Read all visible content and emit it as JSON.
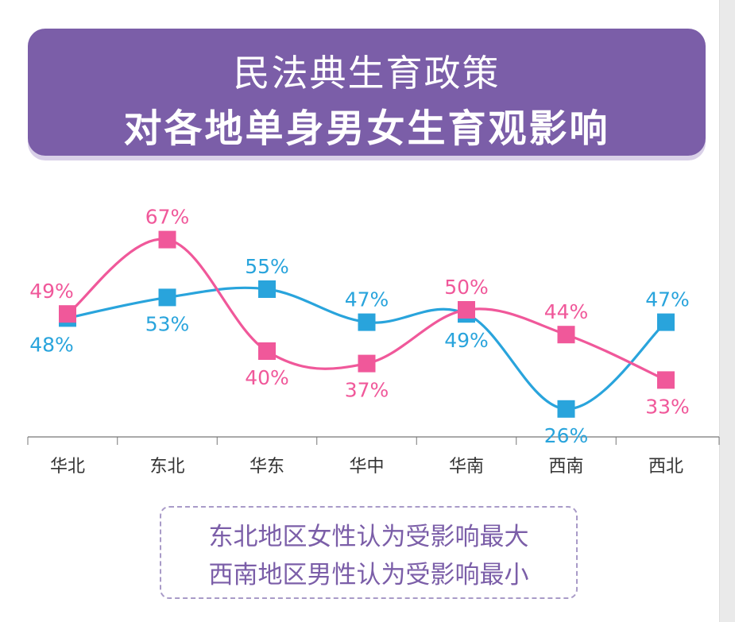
{
  "colors": {
    "banner": "#7b5ea8",
    "female_series": "#f0589a",
    "male_series": "#29a4dc",
    "note_text": "#7b5ea8",
    "axis": "#777777"
  },
  "title": {
    "line1": "民法典生育政策",
    "line2": "对各地单身男女生育观影响"
  },
  "notes": {
    "line1": "东北地区女性认为受影响最大",
    "line2": "西南地区男性认为受影响最小"
  },
  "chart_data": {
    "type": "line",
    "title": "对各地单身男女生育观影响",
    "categories": [
      "华北",
      "东北",
      "华东",
      "华中",
      "华南",
      "西南",
      "西北"
    ],
    "value_format": "percent",
    "ylim": [
      0,
      100
    ],
    "grid": false,
    "legend": "none",
    "series": [
      {
        "key": "pink",
        "color": "#f0589a",
        "values": [
          49,
          67,
          40,
          37,
          50,
          44,
          33
        ],
        "labels": [
          "49%",
          "67%",
          "40%",
          "37%",
          "50%",
          "44%",
          "33%"
        ]
      },
      {
        "key": "blue",
        "color": "#29a4dc",
        "values": [
          48,
          53,
          55,
          47,
          49,
          26,
          47
        ],
        "labels": [
          "48%",
          "53%",
          "55%",
          "47%",
          "49%",
          "26%",
          "47%"
        ]
      }
    ]
  }
}
